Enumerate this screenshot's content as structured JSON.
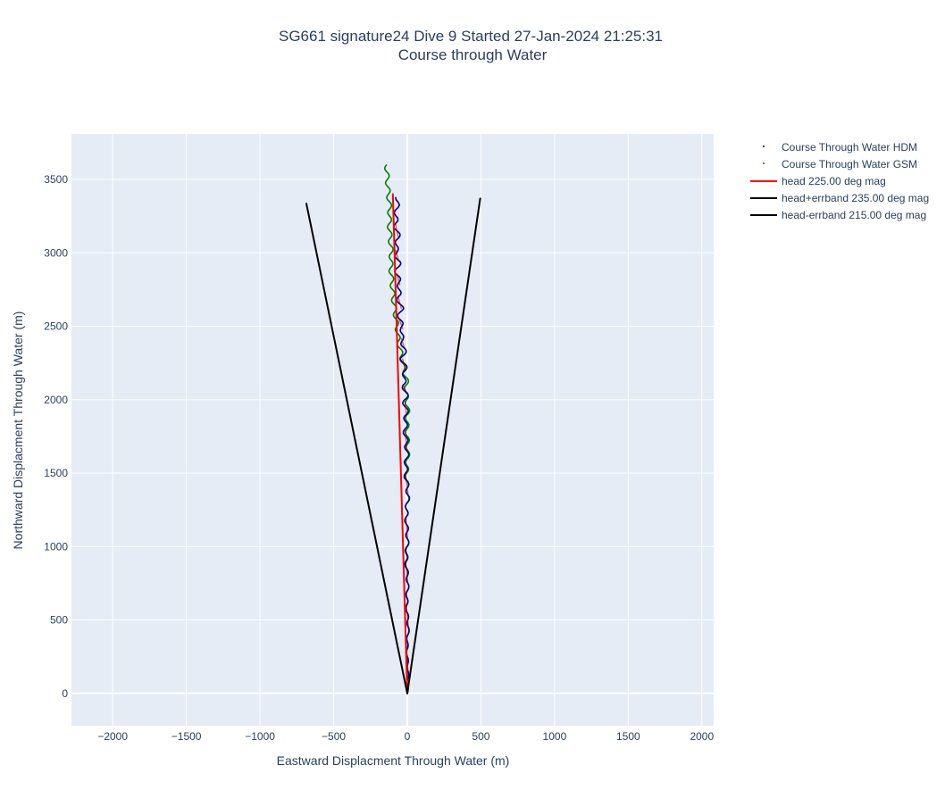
{
  "chart_data": {
    "type": "line",
    "title": "SG661 signature24 Dive 9 Started 27-Jan-2024 21:25:31",
    "subtitle": "Course through Water",
    "xlabel": "Eastward Displacment Through Water (m)",
    "ylabel": "Northward Displacment Through Water (m)",
    "xlim": [
      -2280,
      2080
    ],
    "ylim": [
      -220,
      3810
    ],
    "x_ticks": [
      -2000,
      -1500,
      -1000,
      -500,
      0,
      500,
      1000,
      1500,
      2000
    ],
    "x_tick_labels": [
      "−2000",
      "−1500",
      "−1000",
      "−500",
      "0",
      "500",
      "1000",
      "1500",
      "2000"
    ],
    "y_ticks": [
      0,
      500,
      1000,
      1500,
      2000,
      2500,
      3000,
      3500
    ],
    "y_tick_labels": [
      "0",
      "500",
      "1000",
      "1500",
      "2000",
      "2500",
      "3000",
      "3500"
    ],
    "grid": true,
    "legend_position": "top-right outside",
    "plot_background": "#e5ecf6",
    "series": [
      {
        "name": "Course Through Water HDM",
        "kind": "markers",
        "colors": [
          "#00008b",
          "#8b0000"
        ],
        "x": [
          0,
          5,
          -4,
          8,
          -6,
          4,
          -10,
          2,
          -8,
          6,
          -12,
          -2,
          -16,
          -6,
          -18,
          -4,
          -28,
          -12,
          -32,
          -18,
          -42,
          -30,
          -55,
          -40,
          -62,
          -50,
          -72,
          -58,
          -78,
          -60,
          -80,
          -64
        ],
        "y": [
          0,
          150,
          300,
          450,
          600,
          750,
          900,
          1050,
          1200,
          1350,
          1500,
          1650,
          1800,
          1900,
          2000,
          2050,
          2100,
          2200,
          2280,
          2350,
          2420,
          2480,
          2550,
          2620,
          2700,
          2780,
          2860,
          2940,
          3020,
          3100,
          3200,
          3380
        ]
      },
      {
        "name": "Course Through Water GSM",
        "kind": "markers",
        "color": "#008000",
        "x": [
          0,
          5,
          0,
          6,
          -3,
          4,
          -5,
          3,
          -8,
          4,
          -4,
          6,
          -2,
          4,
          -10,
          -4,
          -24,
          -40,
          -60,
          -70,
          -84,
          -96,
          -104,
          -112,
          -108,
          -116,
          -122,
          -118,
          -128,
          -134,
          -138,
          -140
        ],
        "y": [
          0,
          150,
          300,
          450,
          600,
          750,
          900,
          1050,
          1200,
          1350,
          1500,
          1650,
          1800,
          1950,
          2050,
          2150,
          2200,
          2300,
          2400,
          2500,
          2600,
          2700,
          2800,
          2900,
          3000,
          3100,
          3200,
          3300,
          3400,
          3480,
          3550,
          3600
        ]
      },
      {
        "name": "head 225.00 deg mag",
        "kind": "line",
        "color": "#ff0000",
        "x": [
          0,
          -98
        ],
        "y": [
          0,
          3400
        ]
      },
      {
        "name": "head+errband 235.00 deg mag",
        "kind": "line",
        "color": "#000000",
        "x": [
          0,
          495
        ],
        "y": [
          0,
          3370
        ]
      },
      {
        "name": "head-errband 215.00 deg mag",
        "kind": "line",
        "color": "#000000",
        "x": [
          0,
          -685
        ],
        "y": [
          0,
          3335
        ]
      }
    ]
  }
}
